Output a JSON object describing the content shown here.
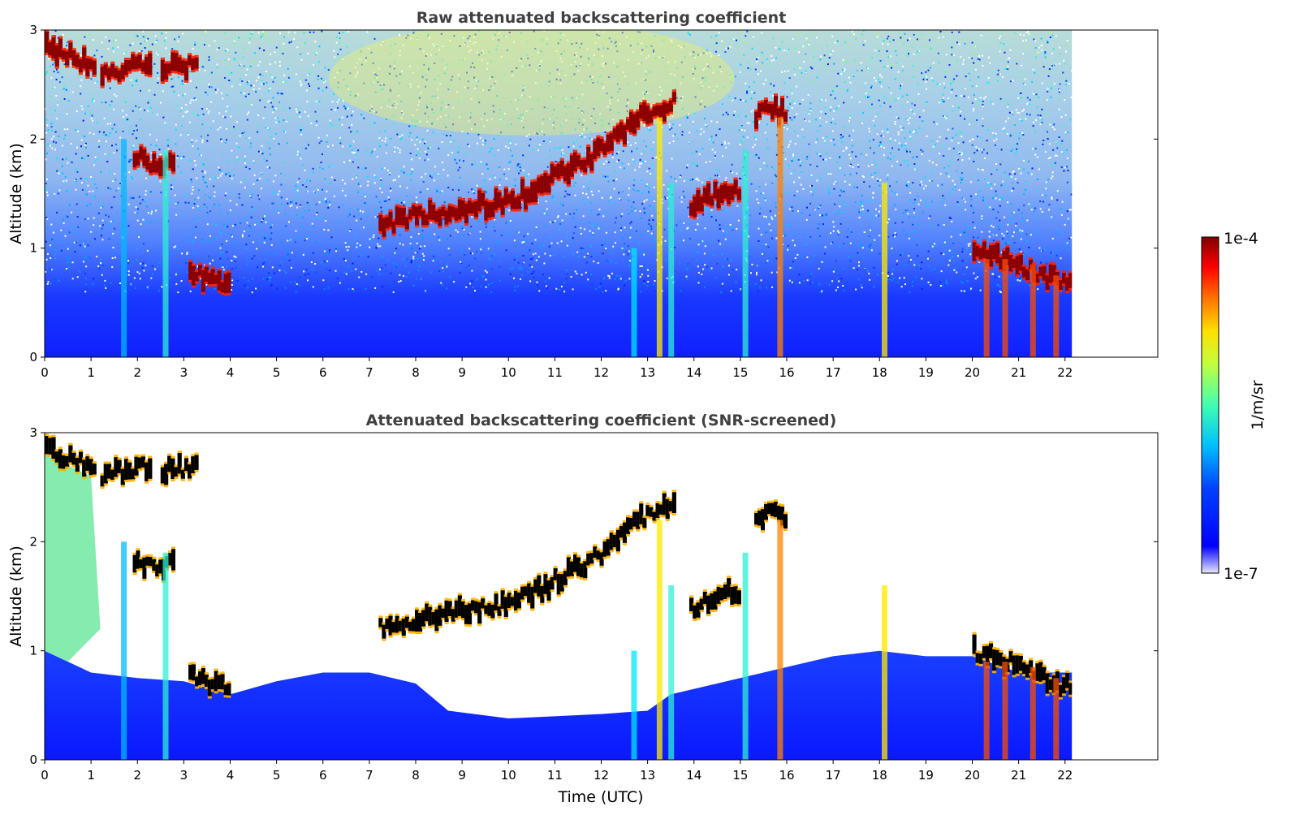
{
  "chart_data": [
    {
      "type": "heatmap",
      "title": "Raw attenuated backscattering coefficient",
      "ylabel": "Altitude (km)",
      "xlabel": "",
      "xlim": [
        0,
        24
      ],
      "ylim": [
        0,
        3
      ],
      "x_ticks": [
        "0",
        "1",
        "2",
        "3",
        "4",
        "5",
        "6",
        "7",
        "8",
        "9",
        "10",
        "11",
        "12",
        "13",
        "14",
        "15",
        "16",
        "17",
        "18",
        "19",
        "20",
        "21",
        "22"
      ],
      "y_ticks": [
        "0",
        "1",
        "2",
        "3"
      ],
      "data_end_time": 22.15,
      "cloud_layers": [
        {
          "x_start": 0.0,
          "x_end": 1.1,
          "altitude_km": [
            2.85,
            2.75,
            2.65
          ]
        },
        {
          "x_start": 1.2,
          "x_end": 2.3,
          "altitude_km": [
            2.6,
            2.65,
            2.7
          ]
        },
        {
          "x_start": 2.5,
          "x_end": 3.3,
          "altitude_km": [
            2.65,
            2.7
          ]
        },
        {
          "x_start": 1.9,
          "x_end": 2.8,
          "altitude_km": [
            1.85,
            1.75,
            1.8
          ]
        },
        {
          "x_start": 7.2,
          "x_end": 13.6,
          "altitude_km": [
            1.2,
            1.3,
            1.35,
            1.4,
            1.5,
            1.7,
            1.9,
            2.2,
            2.35
          ]
        },
        {
          "x_start": 13.9,
          "x_end": 15.0,
          "altitude_km": [
            1.4,
            1.5,
            1.55
          ]
        },
        {
          "x_start": 15.3,
          "x_end": 16.0,
          "altitude_km": [
            2.2,
            2.3,
            2.2
          ]
        },
        {
          "x_start": 3.1,
          "x_end": 4.0,
          "altitude_km": [
            0.8,
            0.7,
            0.65
          ]
        },
        {
          "x_start": 20.0,
          "x_end": 22.15,
          "altitude_km": [
            1.0,
            0.9,
            0.75,
            0.65
          ]
        }
      ]
    },
    {
      "type": "heatmap",
      "title": "Attenuated backscattering coefficient (SNR-screened)",
      "ylabel": "Altitude (km)",
      "xlabel": "Time (UTC)",
      "xlim": [
        0,
        24
      ],
      "ylim": [
        0,
        3
      ],
      "x_ticks": [
        "0",
        "1",
        "2",
        "3",
        "4",
        "5",
        "6",
        "7",
        "8",
        "9",
        "10",
        "11",
        "12",
        "13",
        "14",
        "15",
        "16",
        "17",
        "18",
        "19",
        "20",
        "21",
        "22"
      ],
      "y_ticks": [
        "0",
        "1",
        "2",
        "3"
      ],
      "data_end_time": 22.15
    }
  ],
  "colorbar": {
    "max_label": "1e-4",
    "min_label": "1e-7",
    "unit_label": "1/m/sr",
    "colormap": "jet",
    "colors": [
      "#000080",
      "#0000ff",
      "#0080ff",
      "#00ffff",
      "#80ff80",
      "#ffff00",
      "#ff8000",
      "#ff0000",
      "#800000"
    ]
  }
}
